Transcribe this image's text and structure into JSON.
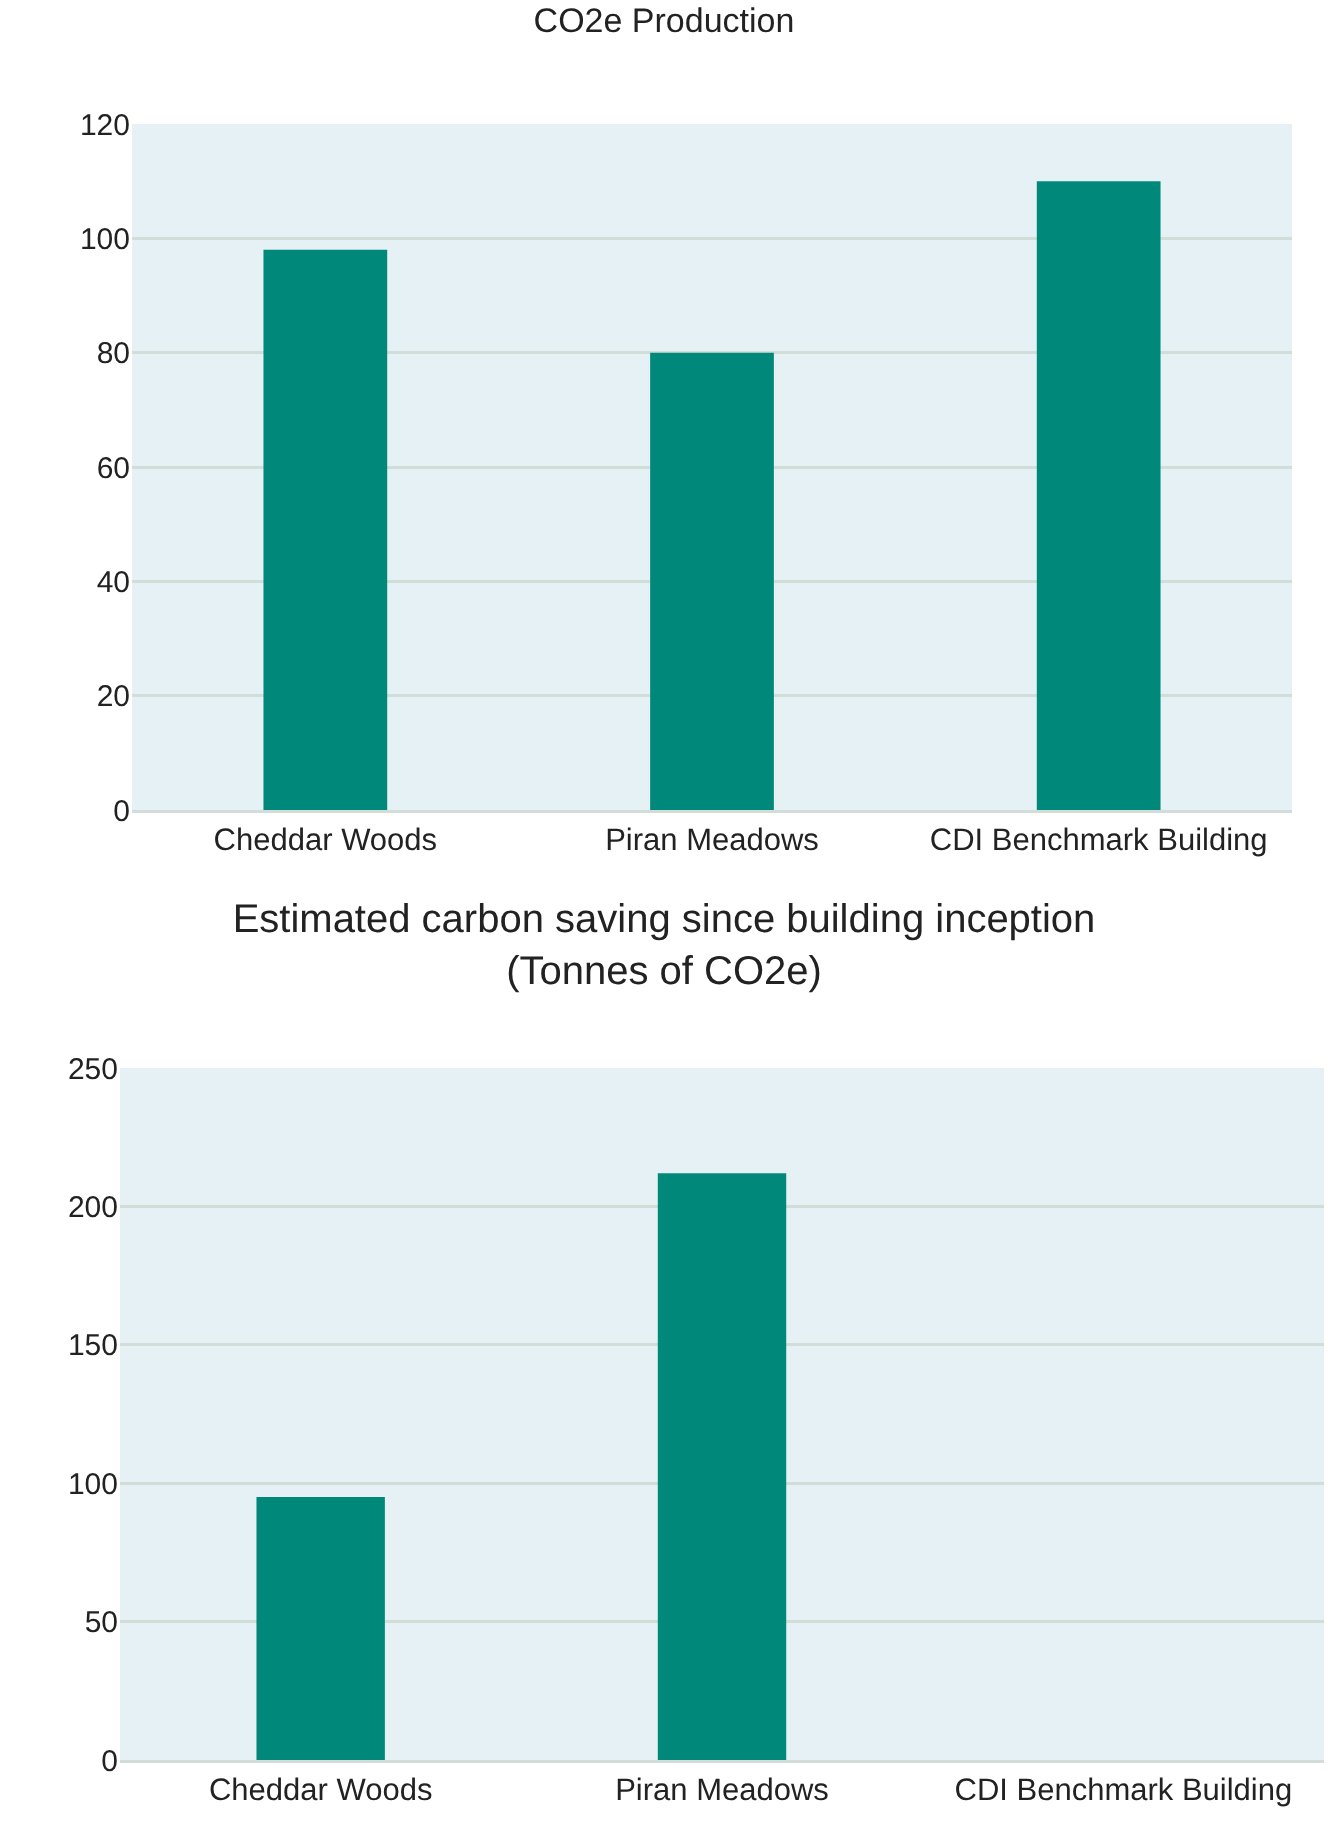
{
  "chart_data": [
    {
      "type": "bar",
      "title": "CO2e Production",
      "categories": [
        "Cheddar Woods",
        "Piran Meadows",
        "CDI Benchmark Building"
      ],
      "values": [
        98,
        80,
        110
      ],
      "color": "#00897b",
      "ylim": [
        0,
        120
      ],
      "yticks": [
        0,
        20,
        40,
        60,
        80,
        100,
        120
      ],
      "grid": "y"
    },
    {
      "type": "bar",
      "title": "Estimated carbon saving since building inception\n(Tonnes of CO2e)",
      "categories": [
        "Cheddar Woods",
        "Piran Meadows",
        "CDI Benchmark Building"
      ],
      "values": [
        95,
        212,
        null
      ],
      "color": "#00897b",
      "ylim": [
        0,
        250
      ],
      "yticks": [
        0,
        50,
        100,
        150,
        200,
        250
      ],
      "grid": "y"
    }
  ]
}
